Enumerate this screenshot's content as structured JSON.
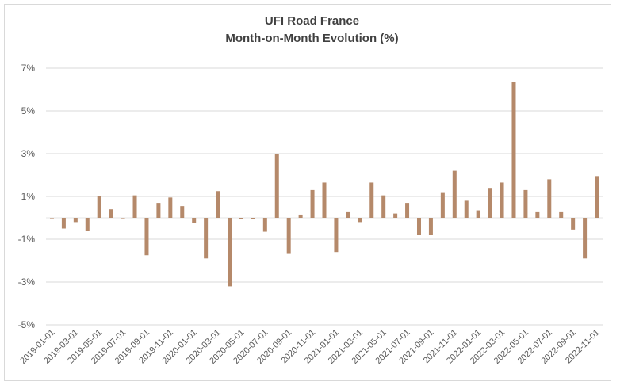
{
  "chart_data": {
    "type": "bar",
    "title_line1": "UFI Road France",
    "title_line2": "Month-on-Month Evolution (%)",
    "xlabel": "",
    "ylabel": "",
    "ylim": [
      -5,
      7
    ],
    "yticks": [
      "7%",
      "5%",
      "3%",
      "1%",
      "-1%",
      "-3%",
      "-5%"
    ],
    "ytick_values": [
      7,
      5,
      3,
      1,
      -1,
      -3,
      -5
    ],
    "grid": true,
    "bar_color": "#b5896a",
    "bar_highlight_color": "#e07070",
    "categories": [
      "2019-01-01",
      "2019-02-01",
      "2019-03-01",
      "2019-04-01",
      "2019-05-01",
      "2019-06-01",
      "2019-07-01",
      "2019-08-01",
      "2019-09-01",
      "2019-10-01",
      "2019-11-01",
      "2019-12-01",
      "2020-01-01",
      "2020-02-01",
      "2020-03-01",
      "2020-04-01",
      "2020-05-01",
      "2020-06-01",
      "2020-07-01",
      "2020-08-01",
      "2020-09-01",
      "2020-10-01",
      "2020-11-01",
      "2020-12-01",
      "2021-01-01",
      "2021-02-01",
      "2021-03-01",
      "2021-04-01",
      "2021-05-01",
      "2021-06-01",
      "2021-07-01",
      "2021-08-01",
      "2021-09-01",
      "2021-10-01",
      "2021-11-01",
      "2021-12-01",
      "2022-01-01",
      "2022-02-01",
      "2022-03-01",
      "2022-04-01",
      "2022-05-01",
      "2022-06-01",
      "2022-07-01",
      "2022-08-01",
      "2022-09-01",
      "2022-10-01",
      "2022-11-01"
    ],
    "xticks_shown": [
      "2019-01-01",
      "2019-03-01",
      "2019-05-01",
      "2019-07-01",
      "2019-09-01",
      "2019-11-01",
      "2020-01-01",
      "2020-03-01",
      "2020-05-01",
      "2020-07-01",
      "2020-09-01",
      "2020-11-01",
      "2021-01-01",
      "2021-03-01",
      "2021-05-01",
      "2021-07-01",
      "2021-09-01",
      "2021-11-01",
      "2022-01-01",
      "2022-03-01",
      "2022-05-01",
      "2022-07-01",
      "2022-09-01",
      "2022-11-01"
    ],
    "values": [
      0.0,
      -0.5,
      -0.2,
      -0.6,
      1.0,
      0.4,
      0.0,
      1.05,
      -1.75,
      0.7,
      0.95,
      0.55,
      -0.25,
      -1.9,
      1.25,
      -3.2,
      -0.05,
      -0.05,
      -0.65,
      3.0,
      -1.65,
      0.15,
      1.3,
      1.65,
      -1.6,
      0.3,
      -0.2,
      1.65,
      1.05,
      0.2,
      0.7,
      -0.8,
      -0.8,
      1.2,
      2.2,
      0.8,
      0.35,
      1.4,
      1.65,
      6.35,
      1.3,
      0.3,
      1.8,
      0.3,
      -0.55,
      -1.9,
      1.95
    ]
  }
}
